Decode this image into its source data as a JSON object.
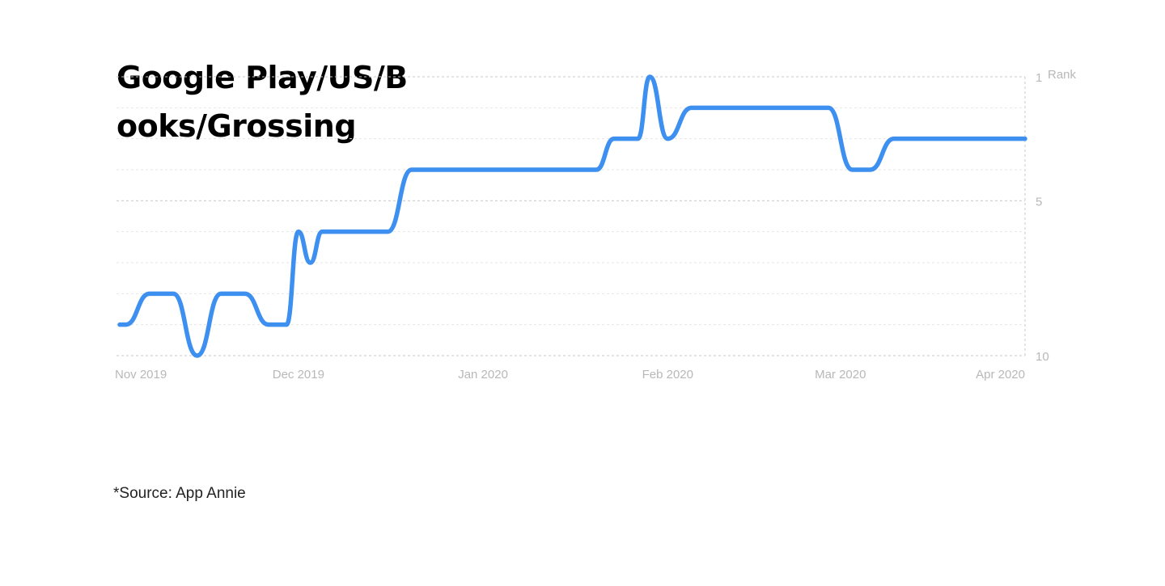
{
  "chart_data": {
    "type": "line",
    "title": "Google Play/US/Books/Grossing",
    "source": "*Source: App Annie",
    "ylabel": "Rank",
    "y_axis_inverted": true,
    "ylim": [
      1,
      10
    ],
    "y_ticks": [
      {
        "value": 1,
        "label": "1"
      },
      {
        "value": 5,
        "label": "5"
      },
      {
        "value": 10,
        "label": "10"
      }
    ],
    "y_unit_label": "Rank",
    "x_ticks": [
      "Nov 2019",
      "Dec 2019",
      "Jan 2020",
      "Feb 2020",
      "Mar 2020",
      "Apr 2020"
    ],
    "x": [
      "2019-11-01",
      "2019-11-02",
      "2019-11-06",
      "2019-11-10",
      "2019-11-14",
      "2019-11-18",
      "2019-11-22",
      "2019-11-26",
      "2019-11-29",
      "2019-12-01",
      "2019-12-03",
      "2019-12-05",
      "2019-12-08",
      "2019-12-16",
      "2019-12-20",
      "2019-12-23",
      "2020-01-20",
      "2020-01-23",
      "2020-01-27",
      "2020-01-29",
      "2020-02-01",
      "2020-02-05",
      "2020-02-28",
      "2020-03-03",
      "2020-03-06",
      "2020-03-10",
      "2020-04-01"
    ],
    "series": [
      {
        "color": "#3d8ff0",
        "values": [
          9,
          9,
          8,
          8,
          10,
          8,
          8,
          9,
          9,
          6,
          7,
          6,
          6,
          6,
          4,
          4,
          4,
          3,
          3,
          1,
          3,
          2,
          2,
          4,
          4,
          3,
          3
        ]
      }
    ],
    "grid": true
  }
}
